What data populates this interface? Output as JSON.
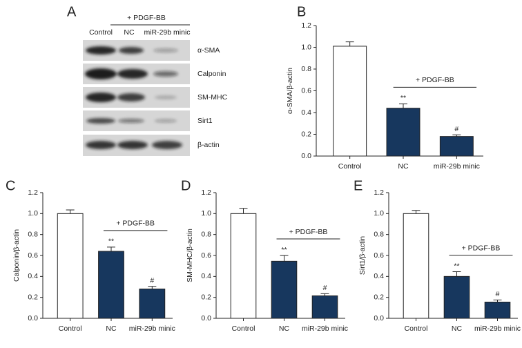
{
  "blot": {
    "panel_label": "A",
    "treatment": "+ PDGF-BB",
    "lanes": [
      "Control",
      "NC",
      "miR-29b minic"
    ],
    "proteins": [
      "α-SMA",
      "Calponin",
      "SM-MHC",
      "Sirt1",
      "β-actin"
    ]
  },
  "chart_data": [
    {
      "type": "bar",
      "panel_label": "B",
      "ylabel": "α-SMA/β-actin",
      "bracket_label": "+ PDGF-BB",
      "categories": [
        "Control",
        "NC",
        "miR-29b minic"
      ],
      "values": [
        1.01,
        0.44,
        0.18
      ],
      "errors": [
        0.04,
        0.04,
        0.015
      ],
      "annotations": [
        null,
        "**",
        "#"
      ],
      "colors": [
        "#ffffff",
        "#17375e",
        "#17375e"
      ],
      "ylim": [
        0,
        1.2
      ],
      "yticks": [
        {
          "value": 0,
          "label": "0.0"
        },
        0.2,
        0.4,
        0.6,
        0.8,
        {
          "value": 1,
          "label": "1.0"
        },
        1.2
      ]
    },
    {
      "type": "bar",
      "panel_label": "C",
      "ylabel": "Calponin/β-actin",
      "bracket_label": "+ PDGF-BB",
      "categories": [
        "Control",
        "NC",
        "miR-29b minic"
      ],
      "values": [
        1.0,
        0.64,
        0.28
      ],
      "errors": [
        0.035,
        0.04,
        0.025
      ],
      "annotations": [
        null,
        "**",
        "#"
      ],
      "colors": [
        "#ffffff",
        "#17375e",
        "#17375e"
      ],
      "ylim": [
        0,
        1.2
      ],
      "yticks": [
        {
          "value": 0,
          "label": "0.0"
        },
        0.2,
        0.4,
        0.6,
        0.8,
        {
          "value": 1,
          "label": "1.0"
        },
        1.2
      ]
    },
    {
      "type": "bar",
      "panel_label": "D",
      "ylabel": "SM-MHC/β-actin",
      "bracket_label": "+ PDGF-BB",
      "categories": [
        "Control",
        "NC",
        "miR-29b minic"
      ],
      "values": [
        1.0,
        0.545,
        0.215
      ],
      "errors": [
        0.05,
        0.055,
        0.02
      ],
      "annotations": [
        null,
        "**",
        "#"
      ],
      "colors": [
        "#ffffff",
        "#17375e",
        "#17375e"
      ],
      "ylim": [
        0,
        1.2
      ],
      "yticks": [
        {
          "value": 0,
          "label": "0.0"
        },
        0.2,
        0.4,
        0.6,
        0.8,
        {
          "value": 1,
          "label": "1.0"
        },
        1.2
      ]
    },
    {
      "type": "bar",
      "panel_label": "E",
      "ylabel": "Sirt1/β-actin",
      "bracket_label": "+ PDGF-BB",
      "categories": [
        "Control",
        "NC",
        "miR-29b minic"
      ],
      "values": [
        1.0,
        0.4,
        0.155
      ],
      "errors": [
        0.03,
        0.045,
        0.02
      ],
      "annotations": [
        null,
        "**",
        "#"
      ],
      "colors": [
        "#ffffff",
        "#17375e",
        "#17375e"
      ],
      "ylim": [
        0,
        1.2
      ],
      "yticks": [
        {
          "value": 0,
          "label": "0.0"
        },
        0.2,
        0.4,
        0.6,
        0.8,
        {
          "value": 1,
          "label": "1.0"
        },
        1.2
      ]
    }
  ]
}
